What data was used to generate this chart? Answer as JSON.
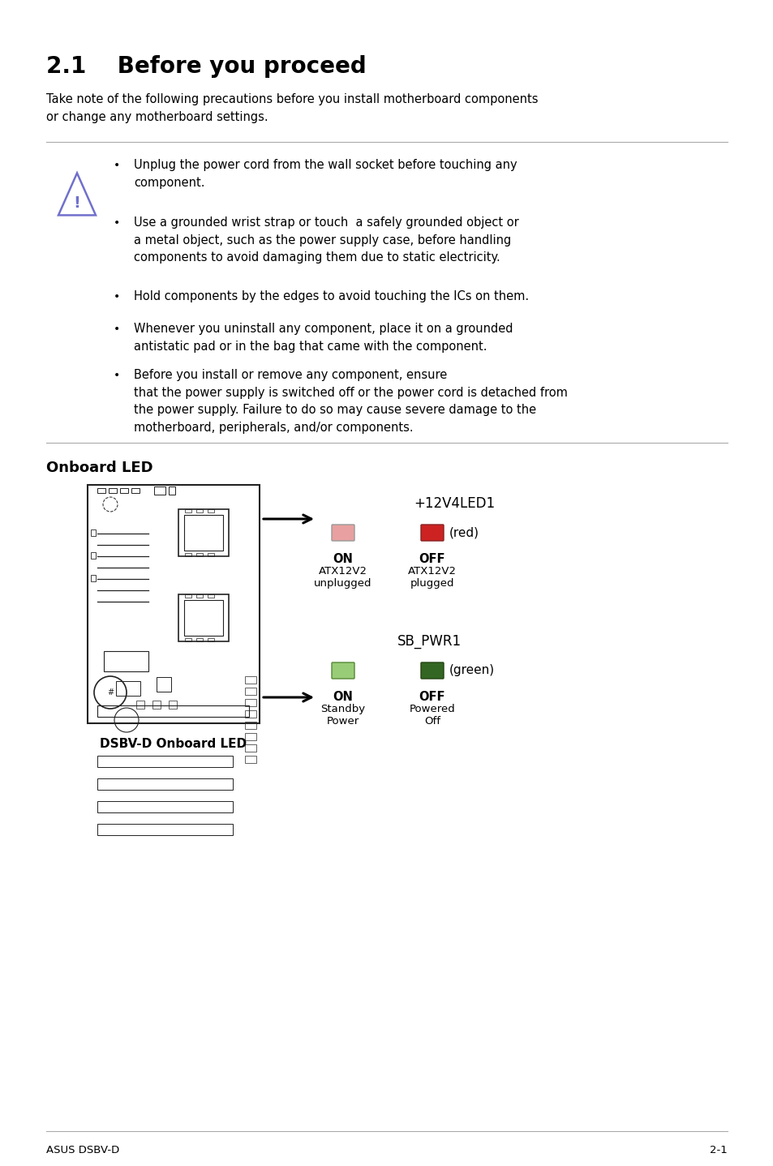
{
  "title": "2.1    Before you proceed",
  "intro_text": "Take note of the following precautions before you install motherboard components\nor change any motherboard settings.",
  "bullets": [
    "Unplug the power cord from the wall socket before touching any\ncomponent.",
    "Use a grounded wrist strap or touch  a safely grounded object or\na metal object, such as the power supply case, before handling\ncomponents to avoid damaging them due to static electricity.",
    "Hold components by the edges to avoid touching the ICs on them.",
    "Whenever you uninstall any component, place it on a grounded\nantistatic pad or in the bag that came with the component.",
    "Before you install or remove any component, ensure\nthat the power supply is switched off or the power cord is detached from\nthe power supply. Failure to do so may cause severe damage to the\nmotherboard, peripherals, and/or components."
  ],
  "section2_title": "Onboard LED",
  "led1_label": "+12V4LED1",
  "led1_on_dim_color": "#e8a0a0",
  "led1_off_bright_color": "#cc2222",
  "led1_on_label": "ON",
  "led1_off_label": "OFF",
  "led1_on_sub1": "ATX12V2",
  "led1_on_sub2": "unplugged",
  "led1_off_sub1": "ATX12V2",
  "led1_off_sub2": "plugged",
  "led1_color_label": "(red)",
  "led2_label": "SB_PWR1",
  "led2_on_dim_color": "#99cc77",
  "led2_off_bright_color": "#336622",
  "led2_on_label": "ON",
  "led2_off_label": "OFF",
  "led2_on_sub1": "Standby",
  "led2_on_sub2": "Power",
  "led2_off_sub1": "Powered",
  "led2_off_sub2": "Off",
  "led2_color_label": "(green)",
  "board_caption": "DSBV-D Onboard LED",
  "footer_left": "ASUS DSBV-D",
  "footer_right": "2-1",
  "bg_color": "#ffffff",
  "text_color": "#000000",
  "warn_icon_color": "#7070cc",
  "line_color": "#aaaaaa",
  "board_color": "#222222",
  "title_fontsize": 20,
  "body_fontsize": 10.5,
  "section_fontsize": 13,
  "led_label_fontsize": 12,
  "small_fontsize": 9.5
}
